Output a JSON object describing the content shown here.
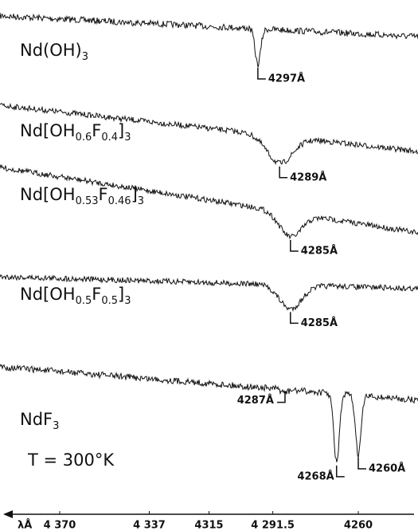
{
  "figure": {
    "x_axis": {
      "label": "λÅ",
      "xlim": [
        4392,
        4238
      ],
      "ticks": [
        {
          "value": 4370,
          "label": "4 370"
        },
        {
          "value": 4337,
          "label": "4 337"
        },
        {
          "value": 4315,
          "label": "4315"
        },
        {
          "value": 4291.5,
          "label": "4 291.5"
        },
        {
          "value": 4260,
          "label": "4260"
        }
      ]
    },
    "spectra": [
      {
        "label": [
          "Nd(OH)",
          "3"
        ],
        "lines": [
          {
            "value": 4297,
            "label": "4297Å"
          }
        ]
      },
      {
        "label": [
          "Nd[OH",
          "0.6",
          "F",
          "0.4",
          "]",
          "3"
        ],
        "lines": [
          {
            "value": 4289,
            "label": "4289Å"
          }
        ]
      },
      {
        "label": [
          "Nd[OH",
          "0.53",
          "F",
          "0.46",
          "]",
          "3"
        ],
        "lines": [
          {
            "value": 4285,
            "label": "4285Å"
          }
        ]
      },
      {
        "label": [
          "Nd[OH",
          "0.5",
          "F",
          "0.5",
          "]",
          "3"
        ],
        "lines": [
          {
            "value": 4285,
            "label": "4285Å"
          }
        ]
      },
      {
        "label": [
          "NdF",
          "3"
        ],
        "lines": [
          {
            "value": 4287,
            "label": "4287Å"
          },
          {
            "value": 4268,
            "label": "4268Å"
          },
          {
            "value": 4260,
            "label": "4260Å"
          }
        ]
      }
    ],
    "temperature": "T = 300°K"
  }
}
